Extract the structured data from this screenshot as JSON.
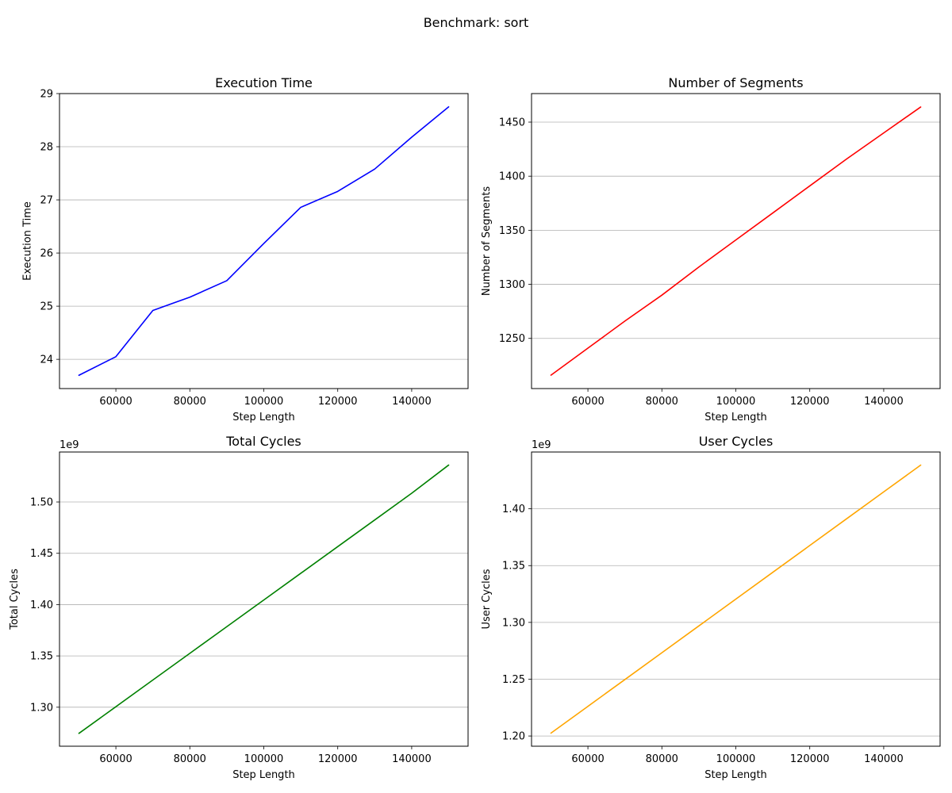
{
  "figure": {
    "title": "Benchmark: sort"
  },
  "chart_data": [
    {
      "type": "line",
      "title": "Execution Time",
      "xlabel": "Step Length",
      "ylabel": "Execution Time",
      "x": [
        50000,
        60000,
        70000,
        80000,
        90000,
        100000,
        110000,
        120000,
        130000,
        140000,
        150000
      ],
      "series": [
        {
          "values": [
            23.7,
            24.05,
            24.92,
            25.17,
            25.48,
            26.18,
            26.86,
            27.16,
            27.58,
            28.18,
            28.75
          ],
          "color": "#0000ff"
        }
      ],
      "xlim": [
        44750,
        155250
      ],
      "ylim": [
        23.45,
        29.0
      ],
      "xticks": [
        60000,
        80000,
        100000,
        120000,
        140000
      ],
      "xtick_labels": [
        "60000",
        "80000",
        "100000",
        "120000",
        "140000"
      ],
      "yticks": [
        24,
        25,
        26,
        27,
        28,
        29
      ],
      "ytick_labels": [
        "24",
        "25",
        "26",
        "27",
        "28",
        "29"
      ],
      "offset_text": "",
      "grid": "y"
    },
    {
      "type": "line",
      "title": "Number of Segments",
      "xlabel": "Step Length",
      "ylabel": "Number of Segments",
      "x": [
        50000,
        60000,
        70000,
        80000,
        90000,
        100000,
        110000,
        120000,
        130000,
        140000,
        150000
      ],
      "series": [
        {
          "values": [
            1216,
            1241,
            1266,
            1290,
            1316,
            1341,
            1366,
            1391,
            1416,
            1440,
            1464
          ],
          "color": "#ff0000"
        }
      ],
      "xlim": [
        44750,
        155250
      ],
      "ylim": [
        1203.6,
        1476.4
      ],
      "xticks": [
        60000,
        80000,
        100000,
        120000,
        140000
      ],
      "xtick_labels": [
        "60000",
        "80000",
        "100000",
        "120000",
        "140000"
      ],
      "yticks": [
        1250,
        1300,
        1350,
        1400,
        1450
      ],
      "ytick_labels": [
        "1250",
        "1300",
        "1350",
        "1400",
        "1450"
      ],
      "offset_text": "",
      "grid": "y"
    },
    {
      "type": "line",
      "title": "Total Cycles",
      "xlabel": "Step Length",
      "ylabel": "Total Cycles",
      "x": [
        50000,
        60000,
        70000,
        80000,
        90000,
        100000,
        110000,
        120000,
        130000,
        140000,
        150000
      ],
      "series": [
        {
          "values": [
            1.2745,
            1.3005,
            1.3265,
            1.3525,
            1.3785,
            1.4045,
            1.4305,
            1.4565,
            1.4825,
            1.5085,
            1.536
          ],
          "color": "#008000"
        }
      ],
      "xlim": [
        44750,
        155250
      ],
      "ylim": [
        1.262,
        1.5487
      ],
      "xticks": [
        60000,
        80000,
        100000,
        120000,
        140000
      ],
      "xtick_labels": [
        "60000",
        "80000",
        "100000",
        "120000",
        "140000"
      ],
      "yticks": [
        1.3,
        1.35,
        1.4,
        1.45,
        1.5
      ],
      "ytick_labels": [
        "1.30",
        "1.35",
        "1.40",
        "1.45",
        "1.50"
      ],
      "offset_text": "1e9",
      "grid": "y"
    },
    {
      "type": "line",
      "title": "User Cycles",
      "xlabel": "Step Length",
      "ylabel": "User Cycles",
      "x": [
        50000,
        60000,
        70000,
        80000,
        90000,
        100000,
        110000,
        120000,
        130000,
        140000,
        150000
      ],
      "series": [
        {
          "values": [
            1.2025,
            1.2261,
            1.2497,
            1.2733,
            1.2969,
            1.3205,
            1.3441,
            1.3677,
            1.3913,
            1.4149,
            1.4385
          ],
          "color": "#ffa500"
        }
      ],
      "xlim": [
        44750,
        155250
      ],
      "ylim": [
        1.191,
        1.45
      ],
      "xticks": [
        60000,
        80000,
        100000,
        120000,
        140000
      ],
      "xtick_labels": [
        "60000",
        "80000",
        "100000",
        "120000",
        "140000"
      ],
      "yticks": [
        1.2,
        1.25,
        1.3,
        1.35,
        1.4
      ],
      "ytick_labels": [
        "1.20",
        "1.25",
        "1.30",
        "1.35",
        "1.40"
      ],
      "offset_text": "1e9",
      "grid": "y"
    }
  ]
}
